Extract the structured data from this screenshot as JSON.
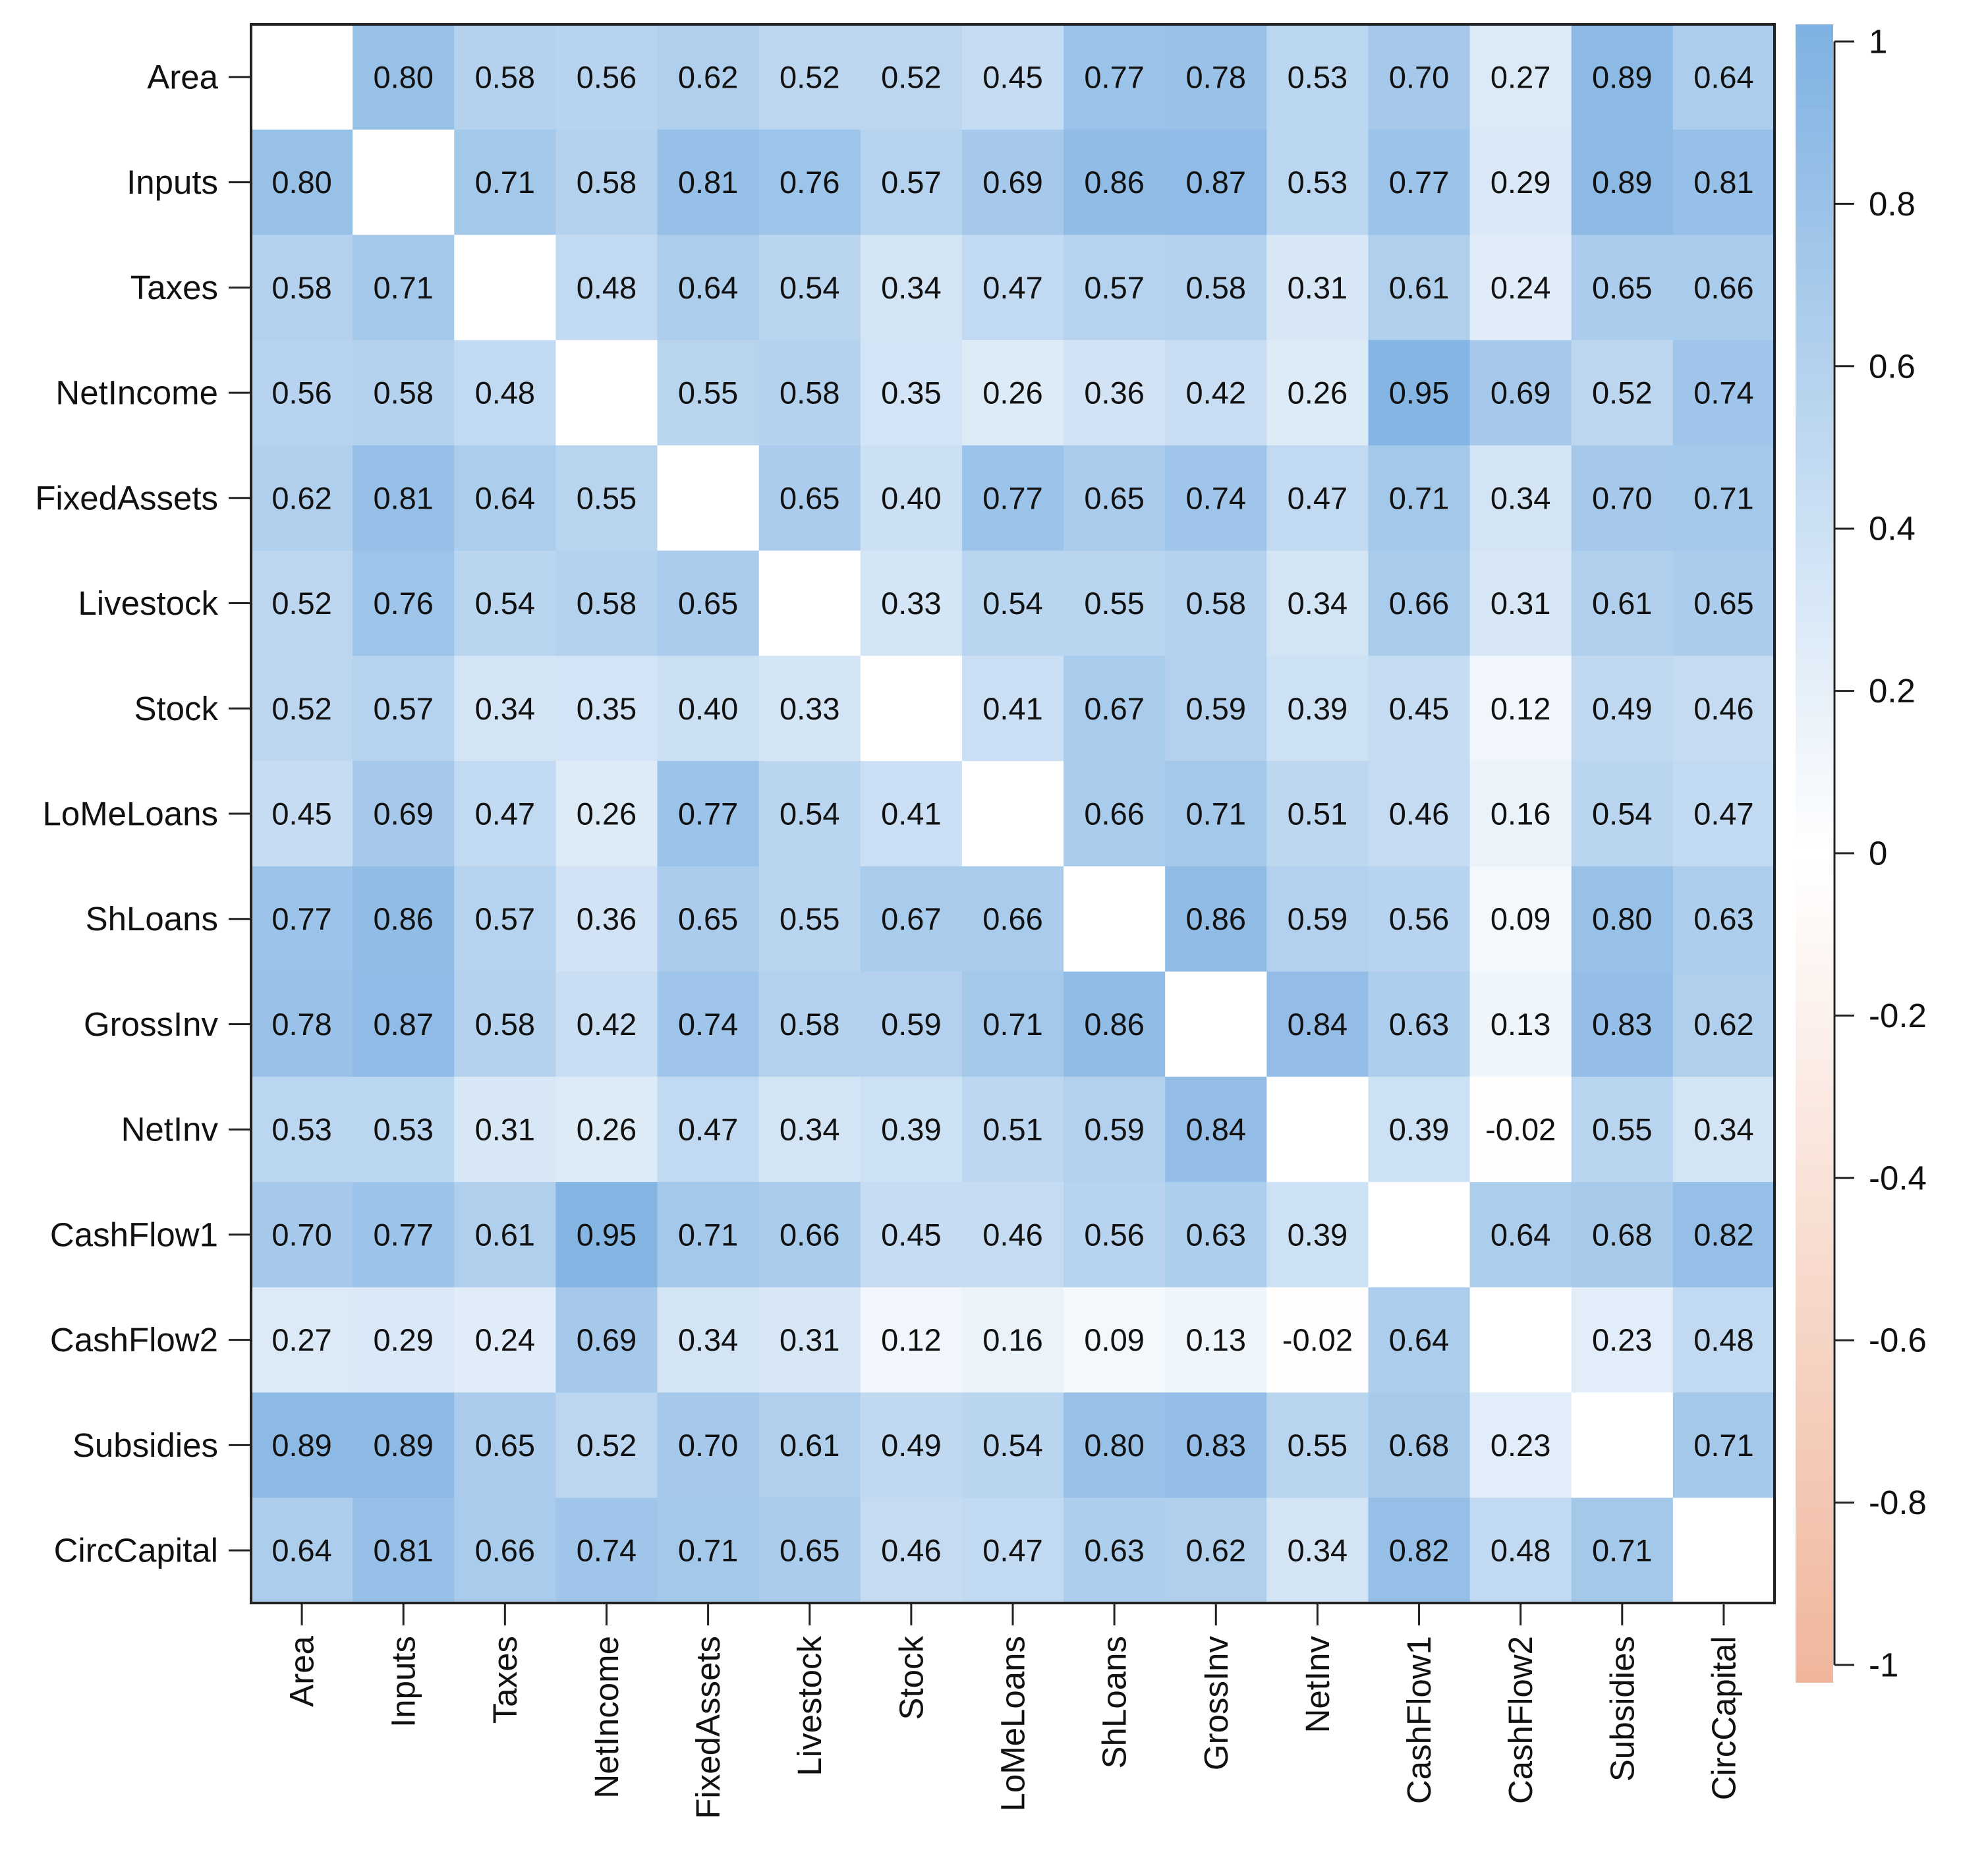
{
  "chart_data": {
    "type": "heatmap",
    "title": "",
    "variables": [
      "Area",
      "Inputs",
      "Taxes",
      "NetIncome",
      "FixedAssets",
      "Livestock",
      "Stock",
      "LoMeLoans",
      "ShLoans",
      "GrossInv",
      "NetInv",
      "CashFlow1",
      "CashFlow2",
      "Subsidies",
      "CircCapital"
    ],
    "matrix": [
      [
        null,
        0.8,
        0.58,
        0.56,
        0.62,
        0.52,
        0.52,
        0.45,
        0.77,
        0.78,
        0.53,
        0.7,
        0.27,
        0.89,
        0.64
      ],
      [
        0.8,
        null,
        0.71,
        0.58,
        0.81,
        0.76,
        0.57,
        0.69,
        0.86,
        0.87,
        0.53,
        0.77,
        0.29,
        0.89,
        0.81
      ],
      [
        0.58,
        0.71,
        null,
        0.48,
        0.64,
        0.54,
        0.34,
        0.47,
        0.57,
        0.58,
        0.31,
        0.61,
        0.24,
        0.65,
        0.66
      ],
      [
        0.56,
        0.58,
        0.48,
        null,
        0.55,
        0.58,
        0.35,
        0.26,
        0.36,
        0.42,
        0.26,
        0.95,
        0.69,
        0.52,
        0.74
      ],
      [
        0.62,
        0.81,
        0.64,
        0.55,
        null,
        0.65,
        0.4,
        0.77,
        0.65,
        0.74,
        0.47,
        0.71,
        0.34,
        0.7,
        0.71
      ],
      [
        0.52,
        0.76,
        0.54,
        0.58,
        0.65,
        null,
        0.33,
        0.54,
        0.55,
        0.58,
        0.34,
        0.66,
        0.31,
        0.61,
        0.65
      ],
      [
        0.52,
        0.57,
        0.34,
        0.35,
        0.4,
        0.33,
        null,
        0.41,
        0.67,
        0.59,
        0.39,
        0.45,
        0.12,
        0.49,
        0.46
      ],
      [
        0.45,
        0.69,
        0.47,
        0.26,
        0.77,
        0.54,
        0.41,
        null,
        0.66,
        0.71,
        0.51,
        0.46,
        0.16,
        0.54,
        0.47
      ],
      [
        0.77,
        0.86,
        0.57,
        0.36,
        0.65,
        0.55,
        0.67,
        0.66,
        null,
        0.86,
        0.59,
        0.56,
        0.09,
        0.8,
        0.63
      ],
      [
        0.78,
        0.87,
        0.58,
        0.42,
        0.74,
        0.58,
        0.59,
        0.71,
        0.86,
        null,
        0.84,
        0.63,
        0.13,
        0.83,
        0.62
      ],
      [
        0.53,
        0.53,
        0.31,
        0.26,
        0.47,
        0.34,
        0.39,
        0.51,
        0.59,
        0.84,
        null,
        0.39,
        -0.02,
        0.55,
        0.34
      ],
      [
        0.7,
        0.77,
        0.61,
        0.95,
        0.71,
        0.66,
        0.45,
        0.46,
        0.56,
        0.63,
        0.39,
        null,
        0.64,
        0.68,
        0.82
      ],
      [
        0.27,
        0.29,
        0.24,
        0.69,
        0.34,
        0.31,
        0.12,
        0.16,
        0.09,
        0.13,
        -0.02,
        0.64,
        null,
        0.23,
        0.48
      ],
      [
        0.89,
        0.89,
        0.65,
        0.52,
        0.7,
        0.61,
        0.49,
        0.54,
        0.8,
        0.83,
        0.55,
        0.68,
        0.23,
        null,
        0.71
      ],
      [
        0.64,
        0.81,
        0.66,
        0.74,
        0.71,
        0.65,
        0.46,
        0.47,
        0.63,
        0.62,
        0.34,
        0.82,
        0.48,
        0.71,
        null
      ]
    ],
    "color_scale": {
      "range": [
        -1,
        1
      ],
      "ticks": [
        1,
        0.8,
        0.6,
        0.4,
        0.2,
        0,
        -0.2,
        -0.4,
        -0.6,
        -0.8,
        -1
      ],
      "tick_labels": [
        "1",
        "0.8",
        "0.6",
        "0.4",
        "0.2",
        "0",
        "-0.2",
        "-0.4",
        "-0.6",
        "-0.8",
        "-1"
      ],
      "positive_color": "#7eb1e2",
      "zero_color": "#ffffff",
      "negative_color": "#f0b69c"
    },
    "legend_position": "right"
  }
}
